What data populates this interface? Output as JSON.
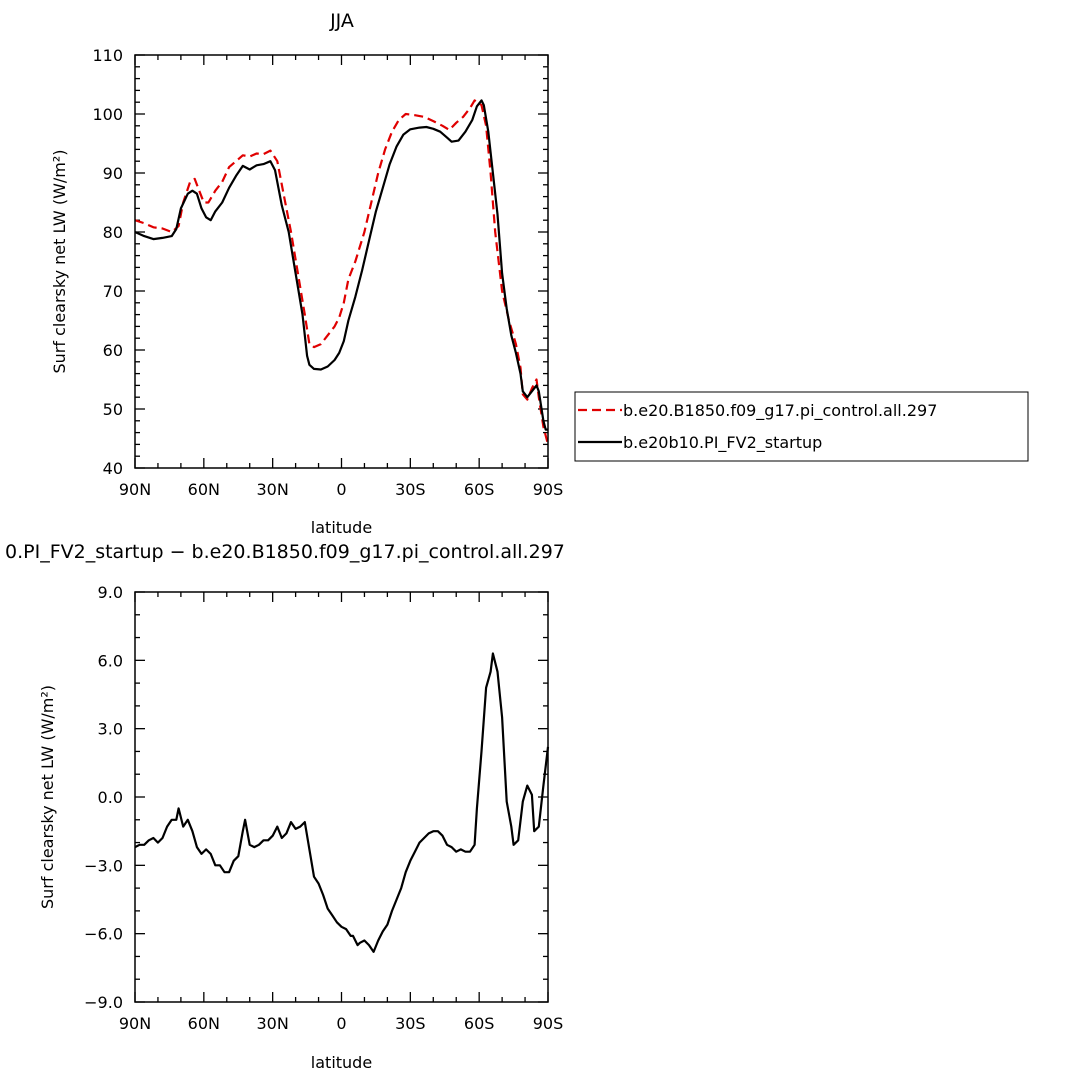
{
  "chart_data": [
    {
      "type": "line",
      "title": "JJA",
      "xlabel": "latitude",
      "ylabel": "Surf clearsky net LW (W/m²)",
      "xlim": [
        90,
        -90
      ],
      "ylim": [
        40,
        110
      ],
      "x_tick_values": [
        90,
        60,
        30,
        0,
        -30,
        -60,
        -90
      ],
      "x_tick_labels": [
        "90N",
        "60N",
        "30N",
        "0",
        "30S",
        "60S",
        "90S"
      ],
      "y_tick_values": [
        40,
        50,
        60,
        70,
        80,
        90,
        100,
        110
      ],
      "y_tick_labels": [
        "40",
        "50",
        "60",
        "70",
        "80",
        "90",
        "100",
        "110"
      ],
      "legend_position": "right",
      "series": [
        {
          "name": "b.e20.B1850.f09_g17.pi_control.all.297",
          "color": "#e00000",
          "dash": "dashed",
          "points": [
            [
              90,
              82
            ],
            [
              86,
              81.5
            ],
            [
              82,
              80.8
            ],
            [
              78,
              80.6
            ],
            [
              74,
              80
            ],
            [
              71,
              81
            ],
            [
              69,
              85
            ],
            [
              66,
              88.5
            ],
            [
              64,
              89
            ],
            [
              62,
              87
            ],
            [
              60,
              85
            ],
            [
              58,
              85
            ],
            [
              55,
              87
            ],
            [
              52,
              88.5
            ],
            [
              49,
              91
            ],
            [
              46,
              92
            ],
            [
              43,
              93
            ],
            [
              40,
              92.8
            ],
            [
              37,
              93.3
            ],
            [
              34,
              93.2
            ],
            [
              31,
              93.8
            ],
            [
              28,
              92
            ],
            [
              25,
              86
            ],
            [
              22,
              80
            ],
            [
              19,
              73
            ],
            [
              16,
              66
            ],
            [
              14,
              61
            ],
            [
              12,
              60.5
            ],
            [
              9,
              61
            ],
            [
              6,
              62.5
            ],
            [
              3,
              64
            ],
            [
              1,
              65.5
            ],
            [
              -1,
              68
            ],
            [
              -3,
              72
            ],
            [
              -6,
              75
            ],
            [
              -10,
              80
            ],
            [
              -13,
              85
            ],
            [
              -16,
              90
            ],
            [
              -19,
              94
            ],
            [
              -22,
              97
            ],
            [
              -25,
              99
            ],
            [
              -28,
              100
            ],
            [
              -32,
              99.8
            ],
            [
              -36,
              99.5
            ],
            [
              -40,
              98.8
            ],
            [
              -44,
              98
            ],
            [
              -47,
              97.3
            ],
            [
              -50,
              98.5
            ],
            [
              -53,
              99.5
            ],
            [
              -56,
              101
            ],
            [
              -58,
              102.3
            ],
            [
              -61,
              101.5
            ],
            [
              -63,
              98
            ],
            [
              -65,
              90
            ],
            [
              -67,
              80
            ],
            [
              -70,
              70
            ],
            [
              -73,
              65
            ],
            [
              -76,
              61
            ],
            [
              -78,
              57
            ],
            [
              -79,
              52.5
            ],
            [
              -81,
              51.6
            ],
            [
              -83,
              53.5
            ],
            [
              -85,
              55
            ],
            [
              -86,
              52
            ],
            [
              -88,
              47
            ],
            [
              -90,
              44
            ]
          ]
        },
        {
          "name": "b.e20b10.PI_FV2_startup",
          "color": "#000000",
          "dash": "solid",
          "points": [
            [
              90,
              80
            ],
            [
              86,
              79.3
            ],
            [
              82,
              78.8
            ],
            [
              78,
              79
            ],
            [
              74,
              79.3
            ],
            [
              72,
              80.5
            ],
            [
              70,
              84
            ],
            [
              67,
              86.5
            ],
            [
              65,
              87
            ],
            [
              63,
              86.5
            ],
            [
              61,
              84
            ],
            [
              59,
              82.5
            ],
            [
              57,
              82
            ],
            [
              55,
              83.5
            ],
            [
              52,
              85
            ],
            [
              49,
              87.5
            ],
            [
              46,
              89.5
            ],
            [
              43,
              91.2
            ],
            [
              40,
              90.6
            ],
            [
              37,
              91.3
            ],
            [
              34,
              91.5
            ],
            [
              31,
              92
            ],
            [
              29,
              90.5
            ],
            [
              26,
              84.5
            ],
            [
              23,
              80
            ],
            [
              20,
              73
            ],
            [
              17,
              66
            ],
            [
              15,
              59
            ],
            [
              14,
              57.5
            ],
            [
              12,
              56.8
            ],
            [
              9,
              56.7
            ],
            [
              6,
              57.2
            ],
            [
              3,
              58.3
            ],
            [
              1,
              59.5
            ],
            [
              -1,
              61.5
            ],
            [
              -3,
              65
            ],
            [
              -6,
              69
            ],
            [
              -9,
              73.5
            ],
            [
              -12,
              78.5
            ],
            [
              -15,
              83.5
            ],
            [
              -18,
              87.5
            ],
            [
              -21,
              91.5
            ],
            [
              -24,
              94.5
            ],
            [
              -27,
              96.5
            ],
            [
              -30,
              97.4
            ],
            [
              -34,
              97.7
            ],
            [
              -37,
              97.8
            ],
            [
              -40,
              97.5
            ],
            [
              -43,
              97
            ],
            [
              -46,
              96
            ],
            [
              -48,
              95.3
            ],
            [
              -51,
              95.5
            ],
            [
              -54,
              97
            ],
            [
              -57,
              99
            ],
            [
              -59,
              101.3
            ],
            [
              -61,
              102.3
            ],
            [
              -62,
              101.5
            ],
            [
              -64,
              97
            ],
            [
              -66,
              90
            ],
            [
              -68,
              83
            ],
            [
              -70,
              73
            ],
            [
              -72,
              67
            ],
            [
              -74,
              62.5
            ],
            [
              -76,
              59.5
            ],
            [
              -78,
              56
            ],
            [
              -79,
              53
            ],
            [
              -81,
              52
            ],
            [
              -83,
              53
            ],
            [
              -85,
              54
            ],
            [
              -86,
              53
            ],
            [
              -88,
              48
            ],
            [
              -89,
              46.5
            ],
            [
              -90,
              46.5
            ]
          ]
        }
      ]
    },
    {
      "type": "line",
      "title": "0.PI_FV2_startup − b.e20.B1850.f09_g17.pi_control.all.297",
      "xlabel": "latitude",
      "ylabel": "Surf clearsky net LW (W/m²)",
      "xlim": [
        90,
        -90
      ],
      "ylim": [
        -9,
        9
      ],
      "x_tick_values": [
        90,
        60,
        30,
        0,
        -30,
        -60,
        -90
      ],
      "x_tick_labels": [
        "90N",
        "60N",
        "30N",
        "0",
        "30S",
        "60S",
        "90S"
      ],
      "y_tick_values": [
        -9,
        -6,
        -3,
        0,
        3,
        6,
        9
      ],
      "y_tick_labels": [
        "−9.0",
        "−6.0",
        "−3.0",
        "0.0",
        "3.0",
        "6.0",
        "9.0"
      ],
      "series": [
        {
          "color": "#000000",
          "dash": "solid",
          "points": [
            [
              90,
              -2.2
            ],
            [
              88,
              -2.1
            ],
            [
              86,
              -2.1
            ],
            [
              84,
              -1.9
            ],
            [
              82,
              -1.8
            ],
            [
              80,
              -2
            ],
            [
              78,
              -1.8
            ],
            [
              76,
              -1.3
            ],
            [
              74,
              -1
            ],
            [
              72,
              -1
            ],
            [
              71,
              -0.5
            ],
            [
              69,
              -1.3
            ],
            [
              67,
              -1
            ],
            [
              65,
              -1.5
            ],
            [
              63,
              -2.2
            ],
            [
              61,
              -2.5
            ],
            [
              59,
              -2.3
            ],
            [
              57,
              -2.5
            ],
            [
              55,
              -3
            ],
            [
              53,
              -3
            ],
            [
              51,
              -3.3
            ],
            [
              49,
              -3.3
            ],
            [
              47,
              -2.8
            ],
            [
              45,
              -2.6
            ],
            [
              43,
              -1.5
            ],
            [
              42,
              -1
            ],
            [
              40,
              -2.1
            ],
            [
              38,
              -2.2
            ],
            [
              36,
              -2.1
            ],
            [
              34,
              -1.9
            ],
            [
              32,
              -1.9
            ],
            [
              30,
              -1.7
            ],
            [
              28,
              -1.3
            ],
            [
              26,
              -1.8
            ],
            [
              24,
              -1.6
            ],
            [
              22,
              -1.1
            ],
            [
              20,
              -1.4
            ],
            [
              18,
              -1.3
            ],
            [
              16,
              -1.1
            ],
            [
              14,
              -2.3
            ],
            [
              12,
              -3.5
            ],
            [
              10,
              -3.8
            ],
            [
              8,
              -4.3
            ],
            [
              6,
              -4.9
            ],
            [
              4,
              -5.2
            ],
            [
              2,
              -5.5
            ],
            [
              0,
              -5.7
            ],
            [
              -2,
              -5.8
            ],
            [
              -4,
              -6.1
            ],
            [
              -5,
              -6.1
            ],
            [
              -7,
              -6.5
            ],
            [
              -8,
              -6.4
            ],
            [
              -10,
              -6.3
            ],
            [
              -12,
              -6.5
            ],
            [
              -14,
              -6.8
            ],
            [
              -16,
              -6.3
            ],
            [
              -18,
              -5.9
            ],
            [
              -20,
              -5.6
            ],
            [
              -22,
              -5
            ],
            [
              -24,
              -4.5
            ],
            [
              -26,
              -4
            ],
            [
              -28,
              -3.3
            ],
            [
              -30,
              -2.8
            ],
            [
              -32,
              -2.4
            ],
            [
              -34,
              -2
            ],
            [
              -36,
              -1.8
            ],
            [
              -38,
              -1.6
            ],
            [
              -40,
              -1.5
            ],
            [
              -42,
              -1.5
            ],
            [
              -44,
              -1.7
            ],
            [
              -46,
              -2.1
            ],
            [
              -48,
              -2.2
            ],
            [
              -50,
              -2.4
            ],
            [
              -52,
              -2.3
            ],
            [
              -54,
              -2.4
            ],
            [
              -56,
              -2.4
            ],
            [
              -58,
              -2.1
            ],
            [
              -59,
              -0.5
            ],
            [
              -61,
              2
            ],
            [
              -63,
              4.8
            ],
            [
              -65,
              5.5
            ],
            [
              -66,
              6.3
            ],
            [
              -68,
              5.5
            ],
            [
              -70,
              3.5
            ],
            [
              -72,
              -0.2
            ],
            [
              -74,
              -1.3
            ],
            [
              -75,
              -2.1
            ],
            [
              -77,
              -1.9
            ],
            [
              -79,
              -0.2
            ],
            [
              -81,
              0.5
            ],
            [
              -83,
              0.1
            ],
            [
              -84,
              -1.5
            ],
            [
              -86,
              -1.3
            ],
            [
              -88,
              0.5
            ],
            [
              -90,
              2.2
            ]
          ]
        }
      ]
    }
  ]
}
